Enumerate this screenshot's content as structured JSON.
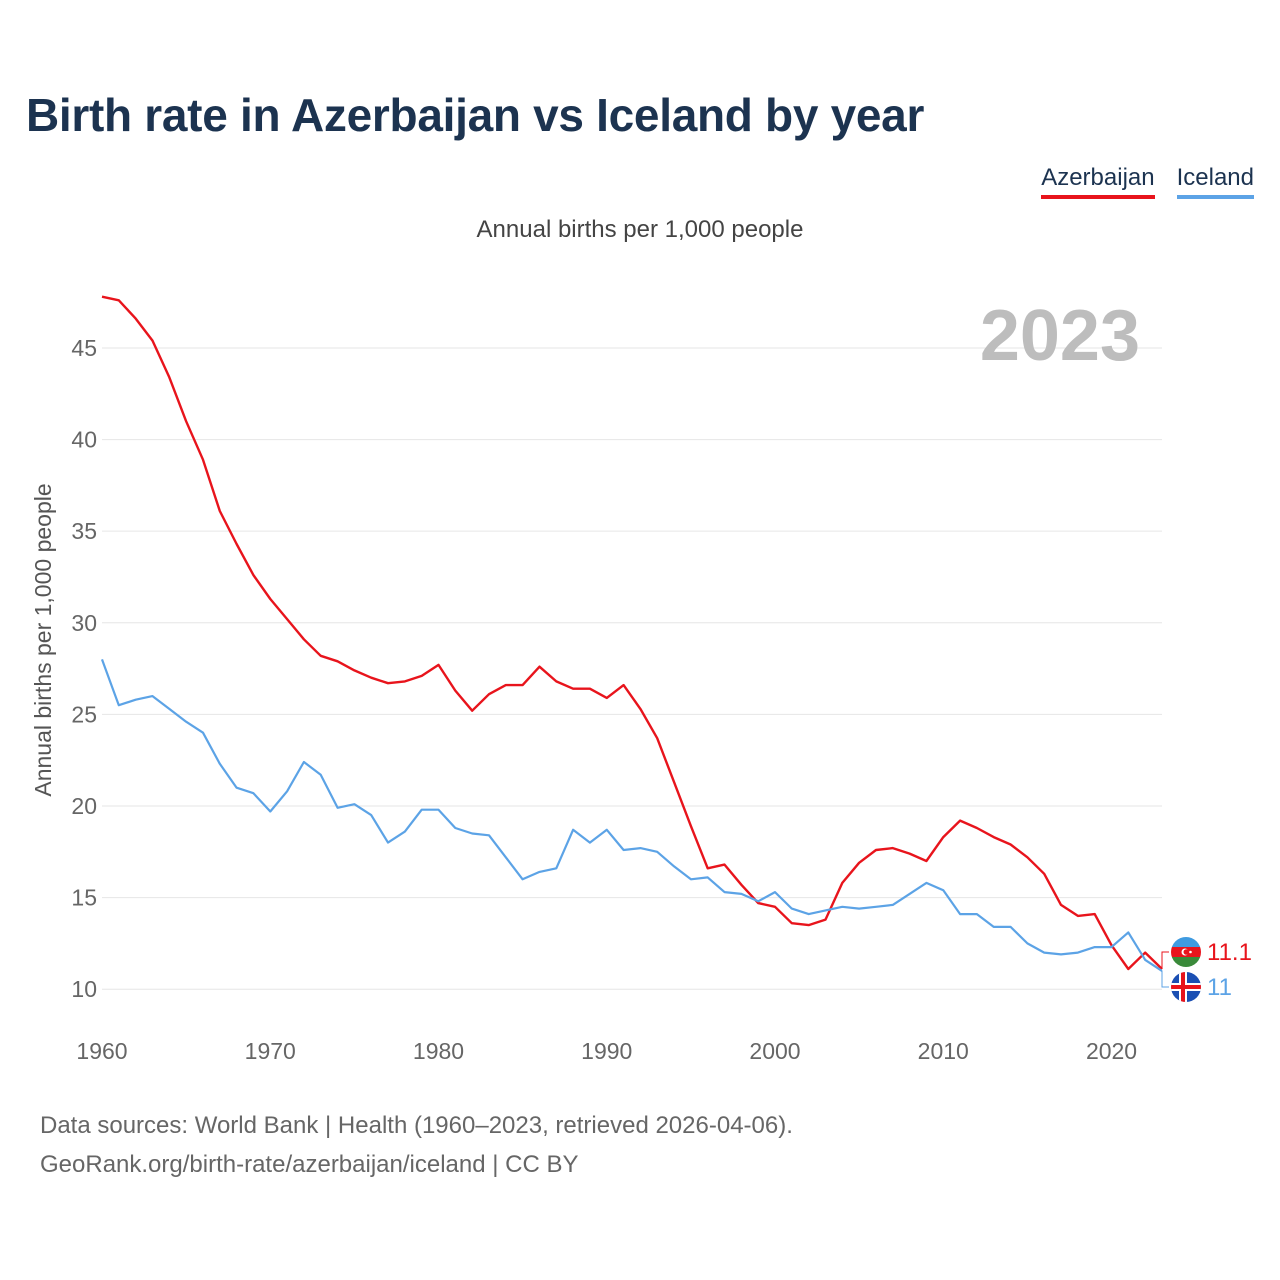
{
  "title": "Birth rate in Azerbaijan vs Iceland by year",
  "subtitle": "Annual births per 1,000 people",
  "legend": [
    {
      "label": "Azerbaijan",
      "color": "#e8141c"
    },
    {
      "label": "Iceland",
      "color": "#5ca3e6"
    }
  ],
  "year_label": "2023",
  "source_lines": [
    "Data sources: World Bank | Health (1960–2023, retrieved 2026-04-06).",
    "GeoRank.org/birth-rate/azerbaijan/iceland | CC BY"
  ],
  "chart_data": {
    "type": "line",
    "title": "Birth rate in Azerbaijan vs Iceland by year",
    "ylabel": "Annual births per 1,000 people",
    "xlabel": "",
    "xlim": [
      1960,
      2023
    ],
    "ylim": [
      7.5,
      48
    ],
    "x_ticks": [
      1960,
      1970,
      1980,
      1990,
      2000,
      2010,
      2020
    ],
    "y_ticks": [
      10,
      15,
      20,
      25,
      30,
      35,
      40,
      45
    ],
    "grid": true,
    "x_start": 1960,
    "series": [
      {
        "name": "Azerbaijan",
        "color": "#e8141c",
        "end_label": "11.1",
        "values": [
          47.8,
          47.6,
          46.6,
          45.4,
          43.4,
          41.0,
          38.9,
          36.1,
          34.3,
          32.6,
          31.3,
          30.2,
          29.1,
          28.2,
          27.9,
          27.4,
          27.0,
          26.7,
          26.8,
          27.1,
          27.7,
          26.3,
          25.2,
          26.1,
          26.6,
          26.6,
          27.6,
          26.8,
          26.4,
          26.4,
          25.9,
          26.6,
          25.3,
          23.7,
          21.3,
          18.9,
          16.6,
          16.8,
          15.7,
          14.7,
          14.5,
          13.6,
          13.5,
          13.8,
          15.8,
          16.9,
          17.6,
          17.7,
          17.4,
          17.0,
          18.3,
          19.2,
          18.8,
          18.3,
          17.9,
          17.2,
          16.3,
          14.6,
          14.0,
          14.1,
          12.4,
          11.1,
          12.0,
          11.1
        ]
      },
      {
        "name": "Iceland",
        "color": "#5ca3e6",
        "end_label": "11",
        "values": [
          28.0,
          25.5,
          25.8,
          26.0,
          25.3,
          24.6,
          24.0,
          22.3,
          21.0,
          20.7,
          19.7,
          20.8,
          22.4,
          21.7,
          19.9,
          20.1,
          19.5,
          18.0,
          18.6,
          19.8,
          19.8,
          18.8,
          18.5,
          18.4,
          17.2,
          16.0,
          16.4,
          16.6,
          18.7,
          18.0,
          18.7,
          17.6,
          17.7,
          17.5,
          16.7,
          16.0,
          16.1,
          15.3,
          15.2,
          14.8,
          15.3,
          14.4,
          14.1,
          14.3,
          14.5,
          14.4,
          14.5,
          14.6,
          15.2,
          15.8,
          15.4,
          14.1,
          14.1,
          13.4,
          13.4,
          12.5,
          12.0,
          11.9,
          12.0,
          12.3,
          12.3,
          13.1,
          11.6,
          11.0
        ]
      }
    ]
  }
}
